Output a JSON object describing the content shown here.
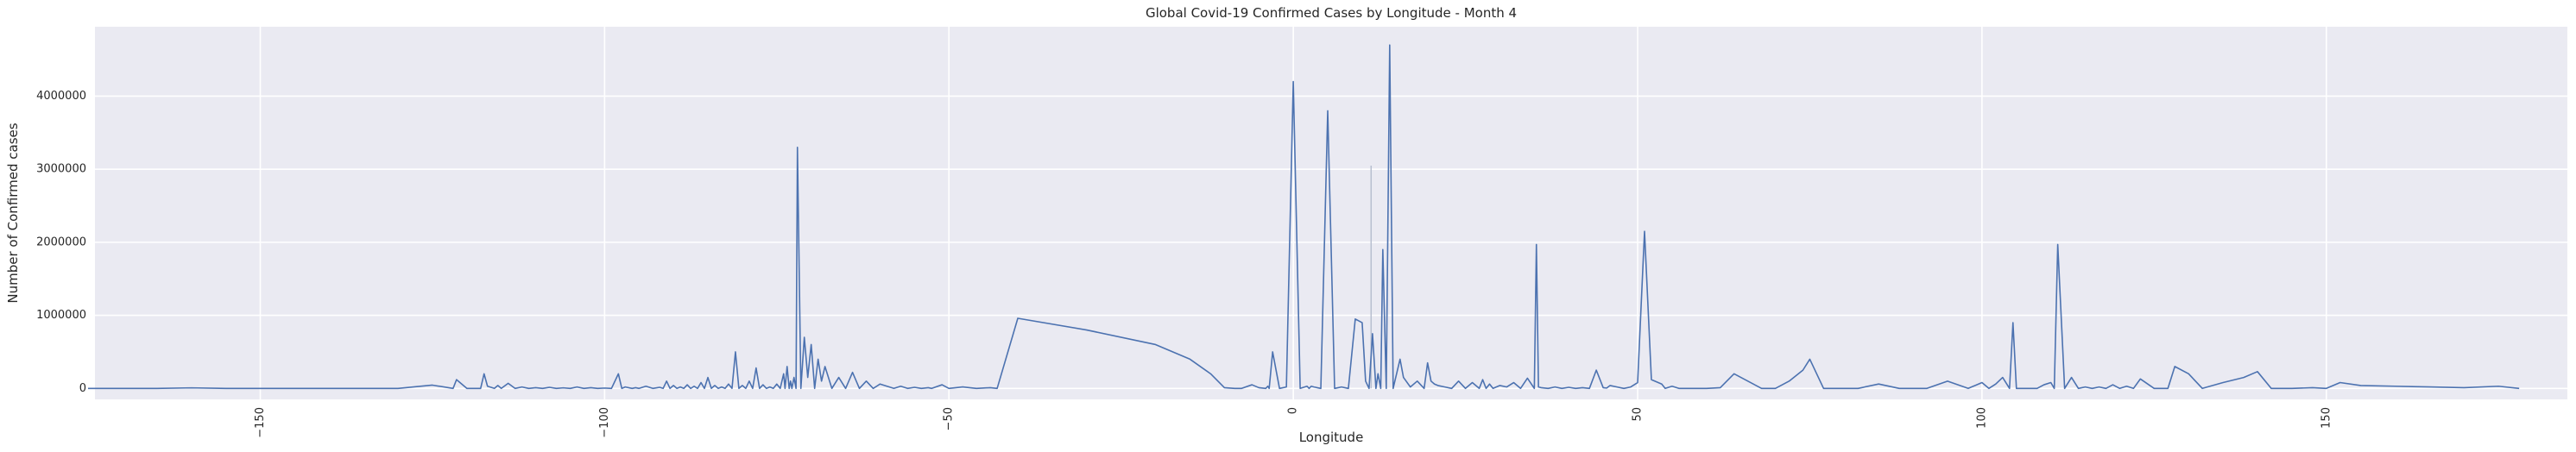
{
  "chart_data": {
    "type": "line",
    "title": "Global Covid-19 Confirmed Cases by Longitude - Month 4",
    "xlabel": "Longitude",
    "ylabel": "Number of Confirmed cases",
    "xlim": [
      -174,
      185
    ],
    "ylim": [
      -150000,
      4950000
    ],
    "xticks": [
      -150,
      -100,
      -50,
      0,
      50,
      100,
      150
    ],
    "xtick_labels": [
      "−150",
      "−100",
      "−50",
      "0",
      "50",
      "100",
      "150"
    ],
    "yticks": [
      0,
      1000000,
      2000000,
      3000000,
      4000000
    ],
    "ytick_labels": [
      "0",
      "1000000",
      "2000000",
      "3000000",
      "4000000"
    ],
    "grid": true,
    "background": "#eaeaf2",
    "line_color": "#4c72b0",
    "band_color": "#b8bfd0",
    "series": [
      {
        "name": "Confirmed cases",
        "x": [
          -175,
          -170,
          -165,
          -160,
          -155,
          -150,
          -145,
          -140,
          -135,
          -130,
          -125,
          -122,
          -121.5,
          -120,
          -118,
          -117.5,
          -117,
          -116,
          -115.5,
          -115,
          -114,
          -113,
          -112,
          -111,
          -110,
          -109,
          -108,
          -107,
          -106,
          -105,
          -104,
          -103,
          -102,
          -101,
          -100,
          -99,
          -98,
          -97.5,
          -97,
          -96,
          -95.5,
          -95,
          -94,
          -93,
          -92,
          -91.5,
          -91,
          -90.5,
          -90,
          -89.5,
          -89,
          -88.5,
          -88,
          -87.5,
          -87,
          -86.5,
          -86,
          -85.5,
          -85,
          -84.5,
          -84,
          -83.5,
          -83,
          -82.5,
          -82,
          -81.5,
          -81,
          -80.5,
          -80,
          -79.5,
          -79,
          -78.5,
          -78,
          -77.5,
          -77,
          -76.5,
          -76,
          -75.5,
          -75,
          -74.5,
          -74,
          -73.8,
          -73.5,
          -73.2,
          -73,
          -72.8,
          -72.5,
          -72.2,
          -72,
          -71.5,
          -71,
          -70.5,
          -70,
          -69.5,
          -69,
          -68.5,
          -68,
          -67,
          -66,
          -65,
          -64,
          -63,
          -62,
          -61,
          -60,
          -58,
          -57,
          -56,
          -55,
          -54,
          -53,
          -52.5,
          -51,
          -50,
          -48,
          -46,
          -44,
          -43,
          -40,
          -30,
          -20,
          -15,
          -12,
          -10,
          -8.5,
          -7.5,
          -6,
          -5,
          -4,
          -3.7,
          -3.5,
          -3,
          -2,
          -1,
          0,
          1,
          2,
          2.3,
          2.6,
          3,
          4,
          5,
          6,
          7,
          8,
          9,
          10,
          10.5,
          11,
          11.5,
          12,
          12.3,
          12.7,
          13,
          13.5,
          14,
          14.5,
          15,
          15.5,
          16,
          17,
          18,
          19,
          19.5,
          20,
          20.5,
          21,
          22,
          23,
          24,
          25,
          26,
          27,
          27.5,
          28,
          28.5,
          29,
          30,
          31,
          32,
          33,
          34,
          35,
          35.3,
          35.6,
          36,
          37,
          38,
          39,
          40,
          41,
          42,
          43,
          44,
          45,
          45.5,
          46,
          47,
          48,
          49,
          50,
          51,
          52,
          53.5,
          54,
          55,
          56,
          57,
          58,
          60,
          62,
          64,
          66,
          68,
          70,
          72,
          74,
          75,
          77,
          79,
          80,
          82,
          85,
          88,
          90,
          92,
          95,
          98,
          100,
          101,
          102,
          103,
          104,
          104.5,
          105,
          106,
          107,
          108,
          109,
          110,
          110.5,
          111,
          112,
          113,
          114,
          115,
          116,
          117,
          118,
          119,
          120,
          121,
          122,
          123,
          125,
          126,
          127,
          128,
          130,
          132,
          135,
          138,
          140,
          142,
          145,
          148,
          150,
          152,
          155,
          160,
          165,
          170,
          175,
          178
        ],
        "values": [
          0,
          0,
          0,
          8000,
          0,
          0,
          0,
          0,
          0,
          0,
          45000,
          0,
          120000,
          0,
          0,
          200000,
          30000,
          0,
          40000,
          0,
          70000,
          0,
          20000,
          0,
          10000,
          0,
          15000,
          0,
          8000,
          0,
          20000,
          0,
          10000,
          0,
          5000,
          0,
          200000,
          0,
          20000,
          0,
          10000,
          0,
          30000,
          0,
          15000,
          0,
          100000,
          0,
          40000,
          0,
          20000,
          0,
          50000,
          0,
          30000,
          0,
          80000,
          0,
          150000,
          0,
          40000,
          0,
          20000,
          0,
          60000,
          0,
          500000,
          0,
          40000,
          0,
          100000,
          0,
          280000,
          0,
          50000,
          0,
          20000,
          0,
          60000,
          0,
          200000,
          0,
          300000,
          0,
          100000,
          0,
          150000,
          0,
          3300000,
          0,
          700000,
          150000,
          600000,
          0,
          400000,
          100000,
          300000,
          0,
          150000,
          0,
          220000,
          0,
          100000,
          0,
          60000,
          0,
          30000,
          0,
          15000,
          0,
          10000,
          0,
          50000,
          0,
          20000,
          0,
          10000,
          0,
          960000,
          800000,
          600000,
          400000,
          200000,
          10000,
          0,
          0,
          50000,
          10000,
          0,
          30000,
          0,
          500000,
          0,
          20000,
          4200000,
          0,
          30000,
          0,
          30000,
          20000,
          0,
          3800000,
          0,
          20000,
          0,
          950000,
          900000,
          100000,
          0,
          750000,
          0,
          200000,
          0,
          1900000,
          0,
          4700000,
          0,
          200000,
          400000,
          150000,
          20000,
          100000,
          0,
          350000,
          100000,
          60000,
          40000,
          20000,
          0,
          100000,
          0,
          80000,
          0,
          120000,
          0,
          60000,
          0,
          40000,
          20000,
          80000,
          0,
          140000,
          0,
          1970000,
          20000,
          10000,
          0,
          20000,
          0,
          15000,
          0,
          10000,
          0,
          250000,
          10000,
          5000,
          40000,
          20000,
          0,
          20000,
          80000,
          2150000,
          120000,
          60000,
          0,
          30000,
          0,
          0,
          0,
          0,
          10000,
          200000,
          100000,
          0,
          0,
          100000,
          250000,
          400000,
          0,
          0,
          0,
          0,
          60000,
          0,
          0,
          0,
          100000,
          0,
          80000,
          0,
          60000,
          150000,
          0,
          900000,
          0,
          0,
          0,
          0,
          50000,
          80000,
          0,
          1970000,
          0,
          150000,
          0,
          20000,
          0,
          20000,
          0,
          50000,
          0,
          30000,
          0,
          130000,
          0,
          0,
          0,
          300000,
          200000,
          0,
          80000,
          150000,
          230000,
          0,
          0,
          10000,
          0,
          80000,
          40000,
          30000,
          20000,
          10000,
          30000,
          0
        ]
      }
    ],
    "uncertainty_band": [
      {
        "x": 11.3,
        "values": [
          0,
          3050000
        ]
      }
    ]
  }
}
